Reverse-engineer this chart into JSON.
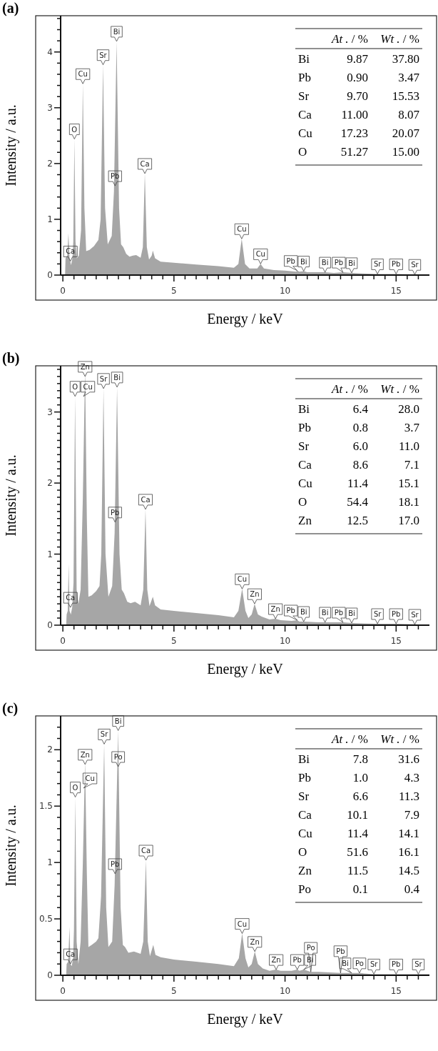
{
  "chart_data": [
    {
      "type": "area",
      "title": "(a)",
      "xlabel": "Energy / keV",
      "ylabel": "Intensity / a.u.",
      "color": "#a6a6a6",
      "x": [
        0.1,
        0.12,
        0.2,
        0.25,
        0.3,
        0.37,
        0.43,
        0.47,
        0.52,
        0.57,
        0.63,
        0.72,
        0.82,
        0.9,
        0.97,
        1.05,
        1.2,
        1.4,
        1.6,
        1.7,
        1.81,
        1.9,
        2.02,
        2.2,
        2.3,
        2.42,
        2.53,
        2.62,
        2.72,
        2.85,
        3.0,
        3.15,
        3.3,
        3.5,
        3.6,
        3.69,
        3.78,
        3.88,
        4.0,
        4.05,
        4.15,
        4.4,
        5.0,
        6.0,
        7.0,
        7.7,
        7.9,
        8.05,
        8.2,
        8.4,
        8.75,
        8.9,
        9.05,
        9.5,
        10.0,
        10.5,
        10.55,
        10.65,
        10.84,
        11.0,
        11.5,
        11.8,
        12.2,
        12.61,
        13.0,
        13.5,
        14.16,
        15.0,
        16.0,
        16.5
      ],
      "values": [
        0,
        0.3,
        0.35,
        0.75,
        0.3,
        0.18,
        0.3,
        0.6,
        2.44,
        0.6,
        0.3,
        0.35,
        0.8,
        3.43,
        1.2,
        0.43,
        0.45,
        0.52,
        0.63,
        1.0,
        3.77,
        1.2,
        0.55,
        0.7,
        1.5,
        4.19,
        1.2,
        0.55,
        0.5,
        0.38,
        0.33,
        0.35,
        0.36,
        0.31,
        0.5,
        1.82,
        0.5,
        0.28,
        0.35,
        0.44,
        0.3,
        0.24,
        0.22,
        0.19,
        0.16,
        0.13,
        0.2,
        0.65,
        0.2,
        0.12,
        0.12,
        0.2,
        0.12,
        0.09,
        0.08,
        0.06,
        0.08,
        0.06,
        0.07,
        0.05,
        0.05,
        0.05,
        0.04,
        0.05,
        0.04,
        0.03,
        0.02,
        0.02,
        0.01,
        0.01
      ],
      "xlim": [
        -0.1,
        16.5
      ],
      "ylim": [
        0,
        4.65
      ],
      "xticks": [
        0,
        {
          "value": 0.5,
          "label": null
        },
        {
          "value": 1,
          "label": null
        },
        {
          "value": 1.5,
          "label": null
        },
        {
          "value": 2,
          "label": null
        },
        {
          "value": 2.5,
          "label": null
        },
        {
          "value": 3,
          "label": null
        },
        {
          "value": 3.5,
          "label": null
        },
        {
          "value": 4,
          "label": null
        },
        {
          "value": 4.5,
          "label": null
        },
        5,
        {
          "value": 5.5,
          "label": null
        },
        {
          "value": 6,
          "label": null
        },
        {
          "value": 6.5,
          "label": null
        },
        {
          "value": 7,
          "label": null
        },
        {
          "value": 7.5,
          "label": null
        },
        {
          "value": 8,
          "label": null
        },
        {
          "value": 8.5,
          "label": null
        },
        {
          "value": 9,
          "label": null
        },
        {
          "value": 9.5,
          "label": null
        },
        10,
        {
          "value": 10.5,
          "label": null
        },
        {
          "value": 11,
          "label": null
        },
        {
          "value": 11.5,
          "label": null
        },
        {
          "value": 12,
          "label": null
        },
        {
          "value": 12.5,
          "label": null
        },
        {
          "value": 13,
          "label": null
        },
        {
          "value": 13.5,
          "label": null
        },
        {
          "value": 14,
          "label": null
        },
        {
          "value": 14.5,
          "label": null
        },
        15,
        {
          "value": 15.5,
          "label": null
        },
        {
          "value": 16,
          "label": null
        }
      ],
      "yticks": [
        0,
        {
          "value": 0.2,
          "label": null
        },
        {
          "value": 0.4,
          "label": null
        },
        {
          "value": 0.6,
          "label": null
        },
        {
          "value": 0.8,
          "label": null
        },
        1,
        {
          "value": 1.2,
          "label": null
        },
        {
          "value": 1.4,
          "label": null
        },
        {
          "value": 1.6,
          "label": null
        },
        {
          "value": 1.8,
          "label": null
        },
        2,
        {
          "value": 2.2,
          "label": null
        },
        {
          "value": 2.4,
          "label": null
        },
        {
          "value": 2.6,
          "label": null
        },
        {
          "value": 2.8,
          "label": null
        },
        3,
        {
          "value": 3.2,
          "label": null
        },
        {
          "value": 3.4,
          "label": null
        },
        {
          "value": 3.6,
          "label": null
        },
        {
          "value": 3.8,
          "label": null
        },
        4,
        {
          "value": 4.2,
          "label": null
        },
        {
          "value": 4.4,
          "label": null
        },
        {
          "value": 4.6,
          "label": null
        }
      ],
      "annotations": [
        {
          "text": "Ca",
          "x": 0.34,
          "y": 0.25
        },
        {
          "text": "O",
          "x": 0.52,
          "y": 2.44
        },
        {
          "text": "Cu",
          "x": 0.9,
          "y": 3.43
        },
        {
          "text": "Sr",
          "x": 1.81,
          "y": 3.77
        },
        {
          "text": "Bi",
          "x": 2.42,
          "y": 4.19
        },
        {
          "text": "Pb",
          "x": 2.35,
          "y": 1.6
        },
        {
          "text": "Ca",
          "x": 3.69,
          "y": 1.82
        },
        {
          "text": "Cu",
          "x": 8.05,
          "y": 0.65
        },
        {
          "text": "Cu",
          "x": 8.9,
          "y": 0.2
        },
        {
          "text": "Bi",
          "x": 10.84,
          "y": 0.07
        },
        {
          "text": "Pb",
          "x": 10.55,
          "y": 0.08
        },
        {
          "text": "Bi",
          "x": 11.8,
          "y": 0.05
        },
        {
          "text": "Bi",
          "x": 13.0,
          "y": 0.04
        },
        {
          "text": "Pb",
          "x": 12.61,
          "y": 0.05
        },
        {
          "text": "Sr",
          "x": 14.16,
          "y": 0.02
        },
        {
          "text": "Pb",
          "x": 15.0,
          "y": 0.02
        },
        {
          "text": "Sr",
          "x": 15.84,
          "y": 0.01
        },
        "At . / %",
        "Wt . / %",
        "Bi",
        "9.87",
        "37.80",
        "Pb",
        "0.90",
        "3.47",
        "Sr",
        "9.70",
        "15.53",
        "Ca",
        "11.00",
        "8.07",
        "Cu",
        "17.23",
        "20.07",
        "O",
        "51.27",
        "15.00"
      ]
    },
    {
      "type": "area",
      "title": "(b)",
      "xlabel": "Energy / keV",
      "ylabel": "Intensity / a.u.",
      "color": "#a6a6a6",
      "x": [
        0.15,
        0.17,
        0.22,
        0.26,
        0.3,
        0.36,
        0.42,
        0.48,
        0.55,
        0.62,
        0.7,
        0.8,
        0.9,
        1.0,
        1.08,
        1.15,
        1.3,
        1.5,
        1.65,
        1.73,
        1.83,
        1.92,
        2.05,
        2.22,
        2.33,
        2.44,
        2.55,
        2.65,
        2.75,
        2.9,
        3.05,
        3.25,
        3.5,
        3.62,
        3.72,
        3.8,
        3.9,
        4.05,
        4.15,
        4.4,
        5.0,
        6.0,
        7.0,
        7.7,
        7.9,
        8.07,
        8.22,
        8.35,
        8.5,
        8.63,
        8.78,
        8.95,
        9.3,
        9.57,
        9.8,
        10.3,
        10.55,
        10.65,
        10.84,
        11.5,
        12.2,
        12.61,
        13.0,
        14.16,
        15.0,
        16.0,
        16.5
      ],
      "values": [
        0,
        0.15,
        0.2,
        0.86,
        0.2,
        0.15,
        0.25,
        0.6,
        3.22,
        0.5,
        0.3,
        0.5,
        1.8,
        3.6,
        1.5,
        0.4,
        0.42,
        0.48,
        0.55,
        1.0,
        3.33,
        1.0,
        0.4,
        0.55,
        1.3,
        3.35,
        1.0,
        0.5,
        0.45,
        0.33,
        0.31,
        0.33,
        0.28,
        0.5,
        1.63,
        0.5,
        0.27,
        0.4,
        0.28,
        0.22,
        0.2,
        0.17,
        0.14,
        0.11,
        0.2,
        0.51,
        0.2,
        0.1,
        0.15,
        0.3,
        0.15,
        0.12,
        0.08,
        0.09,
        0.07,
        0.06,
        0.07,
        0.05,
        0.05,
        0.04,
        0.04,
        0.04,
        0.03,
        0.02,
        0.02,
        0.01,
        0.01
      ],
      "xlim": [
        -0.1,
        16.5
      ],
      "ylim": [
        0,
        3.65
      ],
      "xticks": [
        0,
        {
          "value": 0.5,
          "label": null
        },
        {
          "value": 1,
          "label": null
        },
        {
          "value": 1.5,
          "label": null
        },
        {
          "value": 2,
          "label": null
        },
        {
          "value": 2.5,
          "label": null
        },
        {
          "value": 3,
          "label": null
        },
        {
          "value": 3.5,
          "label": null
        },
        {
          "value": 4,
          "label": null
        },
        {
          "value": 4.5,
          "label": null
        },
        5,
        {
          "value": 5.5,
          "label": null
        },
        {
          "value": 6,
          "label": null
        },
        {
          "value": 6.5,
          "label": null
        },
        {
          "value": 7,
          "label": null
        },
        {
          "value": 7.5,
          "label": null
        },
        {
          "value": 8,
          "label": null
        },
        {
          "value": 8.5,
          "label": null
        },
        {
          "value": 9,
          "label": null
        },
        {
          "value": 9.5,
          "label": null
        },
        10,
        {
          "value": 10.5,
          "label": null
        },
        {
          "value": 11,
          "label": null
        },
        {
          "value": 11.5,
          "label": null
        },
        {
          "value": 12,
          "label": null
        },
        {
          "value": 12.5,
          "label": null
        },
        {
          "value": 13,
          "label": null
        },
        {
          "value": 13.5,
          "label": null
        },
        {
          "value": 14,
          "label": null
        },
        {
          "value": 14.5,
          "label": null
        },
        15,
        {
          "value": 15.5,
          "label": null
        },
        {
          "value": 16,
          "label": null
        }
      ],
      "yticks": [
        0,
        {
          "value": 0.1,
          "label": null
        },
        {
          "value": 0.2,
          "label": null
        },
        {
          "value": 0.3,
          "label": null
        },
        {
          "value": 0.4,
          "label": null
        },
        {
          "value": 0.5,
          "label": null
        },
        {
          "value": 0.6,
          "label": null
        },
        {
          "value": 0.7,
          "label": null
        },
        {
          "value": 0.8,
          "label": null
        },
        {
          "value": 0.9,
          "label": null
        },
        1,
        {
          "value": 1.1,
          "label": null
        },
        {
          "value": 1.2,
          "label": null
        },
        {
          "value": 1.3,
          "label": null
        },
        {
          "value": 1.4,
          "label": null
        },
        {
          "value": 1.5,
          "label": null
        },
        {
          "value": 1.6,
          "label": null
        },
        {
          "value": 1.7,
          "label": null
        },
        {
          "value": 1.8,
          "label": null
        },
        {
          "value": 1.9,
          "label": null
        },
        2,
        {
          "value": 2.1,
          "label": null
        },
        {
          "value": 2.2,
          "label": null
        },
        {
          "value": 2.3,
          "label": null
        },
        {
          "value": 2.4,
          "label": null
        },
        {
          "value": 2.5,
          "label": null
        },
        {
          "value": 2.6,
          "label": null
        },
        {
          "value": 2.7,
          "label": null
        },
        {
          "value": 2.8,
          "label": null
        },
        {
          "value": 2.9,
          "label": null
        },
        3,
        {
          "value": 3.1,
          "label": null
        },
        {
          "value": 3.2,
          "label": null
        },
        {
          "value": 3.3,
          "label": null
        },
        {
          "value": 3.4,
          "label": null
        },
        {
          "value": 3.5,
          "label": null
        },
        {
          "value": 3.6,
          "label": null
        }
      ],
      "annotations": [
        {
          "text": "Ca",
          "x": 0.34,
          "y": 0.25
        },
        {
          "text": "O",
          "x": 0.55,
          "y": 3.22
        },
        {
          "text": "Cu",
          "x": 0.93,
          "y": 3.22
        },
        {
          "text": "Zn",
          "x": 1.0,
          "y": 3.5
        },
        {
          "text": "Sr",
          "x": 1.83,
          "y": 3.33
        },
        {
          "text": "Bi",
          "x": 2.44,
          "y": 3.35
        },
        {
          "text": "Pb",
          "x": 2.35,
          "y": 1.45
        },
        {
          "text": "Ca",
          "x": 3.72,
          "y": 1.63
        },
        {
          "text": "Cu",
          "x": 8.07,
          "y": 0.51
        },
        {
          "text": "Zn",
          "x": 8.63,
          "y": 0.3
        },
        {
          "text": "Zn",
          "x": 9.57,
          "y": 0.09
        },
        {
          "text": "Bi",
          "x": 10.84,
          "y": 0.05
        },
        {
          "text": "Pb",
          "x": 10.55,
          "y": 0.07
        },
        {
          "text": "Bi",
          "x": 11.8,
          "y": 0.04
        },
        {
          "text": "Bi",
          "x": 13.0,
          "y": 0.03
        },
        {
          "text": "Pb",
          "x": 12.61,
          "y": 0.04
        },
        {
          "text": "Sr",
          "x": 14.16,
          "y": 0.02
        },
        {
          "text": "Pb",
          "x": 15.0,
          "y": 0.02
        },
        {
          "text": "Sr",
          "x": 15.84,
          "y": 0.01
        },
        "At . / %",
        "Wt . / %",
        "Bi",
        "6.4",
        "28.0",
        "Pb",
        "0.8",
        "3.7",
        "Sr",
        "6.0",
        "11.0",
        "Ca",
        "8.6",
        "7.1",
        "Cu",
        "11.4",
        "15.1",
        "O",
        "54.4",
        "18.1",
        "Zn",
        "12.5",
        "17.0"
      ]
    },
    {
      "type": "area",
      "title": "(c)",
      "xlabel": "Energy / keV",
      "ylabel": "Intensity / a.u.",
      "color": "#a6a6a6",
      "x": [
        0.15,
        0.17,
        0.24,
        0.3,
        0.34,
        0.4,
        0.46,
        0.5,
        0.56,
        0.62,
        0.7,
        0.8,
        0.9,
        1.0,
        1.08,
        1.15,
        1.3,
        1.5,
        1.6,
        1.72,
        1.86,
        1.95,
        2.05,
        2.22,
        2.33,
        2.49,
        2.6,
        2.7,
        2.8,
        2.95,
        3.2,
        3.5,
        3.62,
        3.74,
        3.82,
        3.92,
        4.07,
        4.17,
        4.4,
        5.0,
        6.0,
        7.0,
        7.7,
        7.92,
        8.07,
        8.22,
        8.35,
        8.5,
        8.64,
        8.78,
        9.0,
        9.3,
        9.6,
        9.8,
        10.3,
        10.55,
        10.65,
        10.84,
        11.16,
        11.5,
        12.5,
        13.0,
        13.35,
        14.0,
        15.0,
        16.0,
        16.5
      ],
      "values": [
        0,
        0.1,
        0.12,
        0.43,
        0.1,
        0.08,
        0.15,
        0.4,
        1.58,
        0.3,
        0.1,
        0.3,
        1.0,
        1.9,
        0.9,
        0.25,
        0.27,
        0.3,
        0.33,
        0.7,
        2.05,
        0.6,
        0.25,
        0.3,
        0.8,
        2.17,
        0.6,
        0.27,
        0.25,
        0.2,
        0.21,
        0.19,
        0.3,
        1.02,
        0.3,
        0.17,
        0.27,
        0.18,
        0.16,
        0.14,
        0.12,
        0.1,
        0.08,
        0.15,
        0.37,
        0.15,
        0.07,
        0.1,
        0.21,
        0.1,
        0.06,
        0.04,
        0.05,
        0.04,
        0.04,
        0.05,
        0.04,
        0.05,
        0.03,
        0.03,
        0.02,
        0.02,
        0.02,
        0.01,
        0.01,
        0.01,
        0.01
      ],
      "xlim": [
        -0.1,
        16.5
      ],
      "ylim": [
        0,
        2.3
      ],
      "xticks": [
        0,
        {
          "value": 0.5,
          "label": null
        },
        {
          "value": 1,
          "label": null
        },
        {
          "value": 1.5,
          "label": null
        },
        {
          "value": 2,
          "label": null
        },
        {
          "value": 2.5,
          "label": null
        },
        {
          "value": 3,
          "label": null
        },
        {
          "value": 3.5,
          "label": null
        },
        {
          "value": 4,
          "label": null
        },
        {
          "value": 4.5,
          "label": null
        },
        5,
        {
          "value": 5.5,
          "label": null
        },
        {
          "value": 6,
          "label": null
        },
        {
          "value": 6.5,
          "label": null
        },
        {
          "value": 7,
          "label": null
        },
        {
          "value": 7.5,
          "label": null
        },
        {
          "value": 8,
          "label": null
        },
        {
          "value": 8.5,
          "label": null
        },
        {
          "value": 9,
          "label": null
        },
        {
          "value": 9.5,
          "label": null
        },
        10,
        {
          "value": 10.5,
          "label": null
        },
        {
          "value": 11,
          "label": null
        },
        {
          "value": 11.5,
          "label": null
        },
        {
          "value": 12,
          "label": null
        },
        {
          "value": 12.5,
          "label": null
        },
        {
          "value": 13,
          "label": null
        },
        {
          "value": 13.5,
          "label": null
        },
        {
          "value": 14,
          "label": null
        },
        {
          "value": 14.5,
          "label": null
        },
        15,
        {
          "value": 15.5,
          "label": null
        },
        {
          "value": 16,
          "label": null
        }
      ],
      "yticks": [
        0,
        {
          "value": 0.1,
          "label": null
        },
        {
          "value": 0.2,
          "label": null
        },
        {
          "value": 0.3,
          "label": null
        },
        {
          "value": 0.4,
          "label": null
        },
        0.5,
        {
          "value": 0.6,
          "label": null
        },
        {
          "value": 0.7,
          "label": null
        },
        {
          "value": 0.8,
          "label": null
        },
        {
          "value": 0.9,
          "label": null
        },
        1,
        {
          "value": 1.1,
          "label": null
        },
        {
          "value": 1.2,
          "label": null
        },
        {
          "value": 1.3,
          "label": null
        },
        {
          "value": 1.4,
          "label": null
        },
        1.5,
        {
          "value": 1.6,
          "label": null
        },
        {
          "value": 1.7,
          "label": null
        },
        {
          "value": 1.8,
          "label": null
        },
        {
          "value": 1.9,
          "label": null
        },
        2,
        {
          "value": 2.1,
          "label": null
        },
        {
          "value": 2.2,
          "label": null
        }
      ],
      "annotations": [
        {
          "text": "Ca",
          "x": 0.34,
          "y": 0.1
        },
        {
          "text": "O",
          "x": 0.56,
          "y": 1.58
        },
        {
          "text": "Cu",
          "x": 0.93,
          "y": 1.66
        },
        {
          "text": "Zn",
          "x": 1.0,
          "y": 1.87
        },
        {
          "text": "Sr",
          "x": 1.86,
          "y": 2.05
        },
        {
          "text": "Po",
          "x": 2.49,
          "y": 1.85
        },
        {
          "text": "Bi",
          "x": 2.49,
          "y": 2.17
        },
        {
          "text": "Pb",
          "x": 2.35,
          "y": 0.9
        },
        {
          "text": "Ca",
          "x": 3.74,
          "y": 1.02
        },
        {
          "text": "Cu",
          "x": 8.07,
          "y": 0.37
        },
        {
          "text": "Zn",
          "x": 8.64,
          "y": 0.21
        },
        {
          "text": "Zn",
          "x": 9.6,
          "y": 0.05
        },
        {
          "text": "Pb",
          "x": 10.55,
          "y": 0.05
        },
        {
          "text": "Bi",
          "x": 10.84,
          "y": 0.05
        },
        {
          "text": "Po",
          "x": 11.16,
          "y": 0.03
        },
        {
          "text": "Po",
          "x": 13.35,
          "y": 0.02
        },
        {
          "text": "Bi",
          "x": 13.0,
          "y": 0.02
        },
        {
          "text": "Pb",
          "x": 12.5,
          "y": 0.02
        },
        {
          "text": "Sr",
          "x": 14.0,
          "y": 0.01
        },
        {
          "text": "Pb",
          "x": 15.0,
          "y": 0.01
        },
        {
          "text": "Sr",
          "x": 16.0,
          "y": 0.01
        },
        "At . / %",
        "Wt . / %",
        "Bi",
        "7.8",
        "31.6",
        "Pb",
        "1.0",
        "4.3",
        "Sr",
        "6.6",
        "11.3",
        "Ca",
        "10.1",
        "7.9",
        "Cu",
        "11.4",
        "14.1",
        "O",
        "51.6",
        "16.1",
        "Zn",
        "11.5",
        "14.5",
        "Po",
        "0.1",
        "0.4"
      ]
    }
  ]
}
